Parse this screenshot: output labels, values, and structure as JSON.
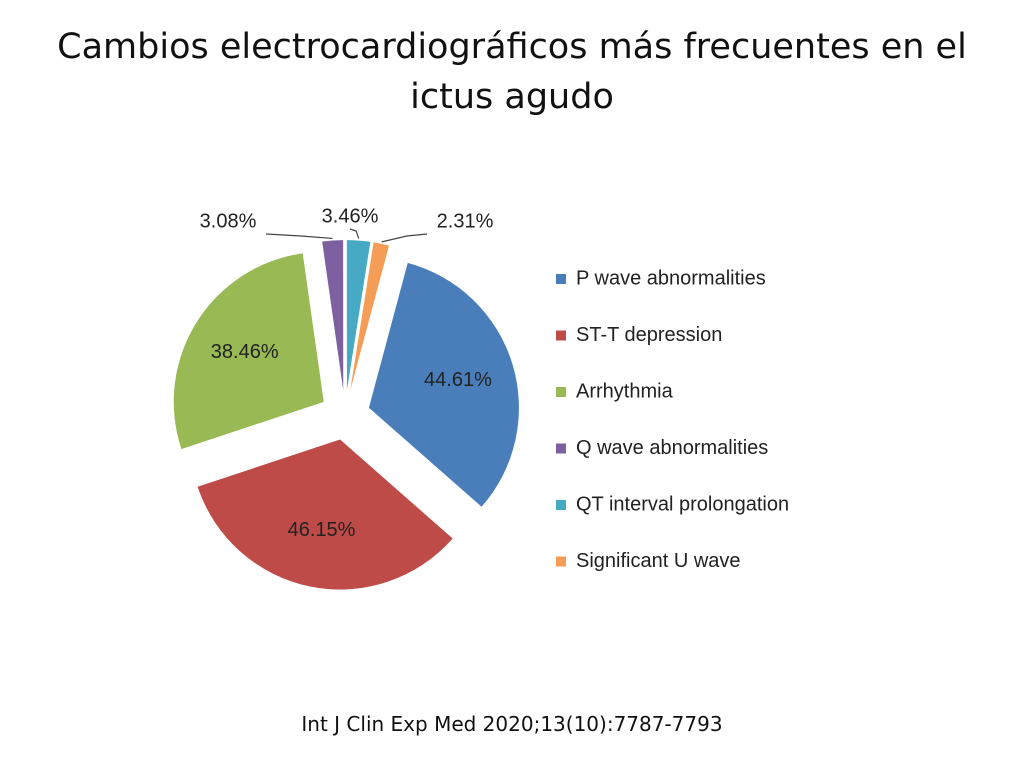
{
  "chart_data": {
    "type": "pie",
    "title": "Cambios electrocardiográficos más frecuentes en el ictus agudo",
    "categories": [
      "P wave abnormalities",
      "ST-T depression",
      "Arrhythmia",
      "Q wave abnormalities",
      "QT interval prolongation",
      "Significant U wave"
    ],
    "values": [
      44.61,
      46.15,
      38.46,
      3.08,
      3.46,
      2.31
    ],
    "value_labels": [
      "44.61%",
      "46.15%",
      "38.46%",
      "3.08%",
      "3.46%",
      "2.31%"
    ],
    "colors": [
      "#4a7ebb",
      "#be4b48",
      "#98b954",
      "#7d60a0",
      "#46aac5",
      "#f59d56"
    ],
    "legend": "right",
    "source": "Int J Clin Exp Med 2020;13(10):7787-7793"
  }
}
